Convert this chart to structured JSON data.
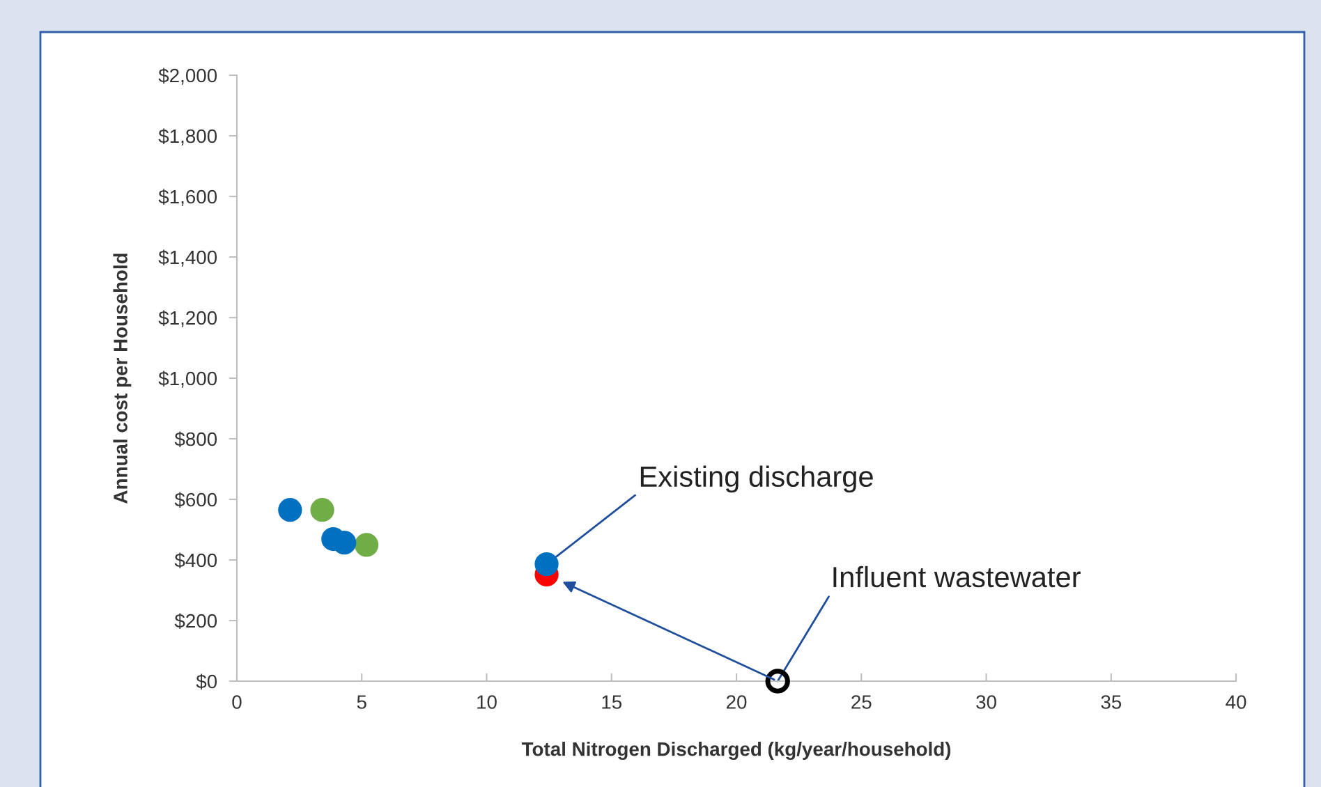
{
  "chart_data": {
    "type": "scatter",
    "xlabel": "Total Nitrogen Discharged (kg/year/household)",
    "ylabel": "Annual cost per Household",
    "xlim": [
      0,
      40
    ],
    "xticks": [
      0,
      5,
      10,
      15,
      20,
      25,
      30,
      35,
      40
    ],
    "ylim": [
      0,
      2000
    ],
    "yticks": [
      {
        "value": 0,
        "label": "$0"
      },
      {
        "value": 200,
        "label": "$200"
      },
      {
        "value": 400,
        "label": "$400"
      },
      {
        "value": 600,
        "label": "$600"
      },
      {
        "value": 800,
        "label": "$800"
      },
      {
        "value": 1000,
        "label": "$1,000"
      },
      {
        "value": 1200,
        "label": "$1,200"
      },
      {
        "value": 1400,
        "label": "$1,400"
      },
      {
        "value": 1600,
        "label": "$1,600"
      },
      {
        "value": 1800,
        "label": "$1,800"
      },
      {
        "value": 2000,
        "label": "$2,000"
      }
    ],
    "grid": false,
    "marker": "circle",
    "series": [
      {
        "color": "#0070c0",
        "x": [
          2.13,
          3.86,
          4.3,
          12.4
        ],
        "values": [
          565,
          469,
          457,
          386
        ]
      },
      {
        "color": "#70ad47",
        "x": [
          3.42,
          5.19
        ],
        "values": [
          565,
          450
        ]
      },
      {
        "color": "#ff0000",
        "x": [
          12.4
        ],
        "values": [
          352
        ]
      },
      {
        "color": "#000000",
        "x": [
          21.65
        ],
        "values": [
          0
        ]
      }
    ],
    "annotations": [
      {
        "text": "Existing discharge",
        "x": 12.4,
        "y": 386
      },
      {
        "text": "Influent wastewater",
        "x": 21.65,
        "y": 0
      }
    ]
  }
}
